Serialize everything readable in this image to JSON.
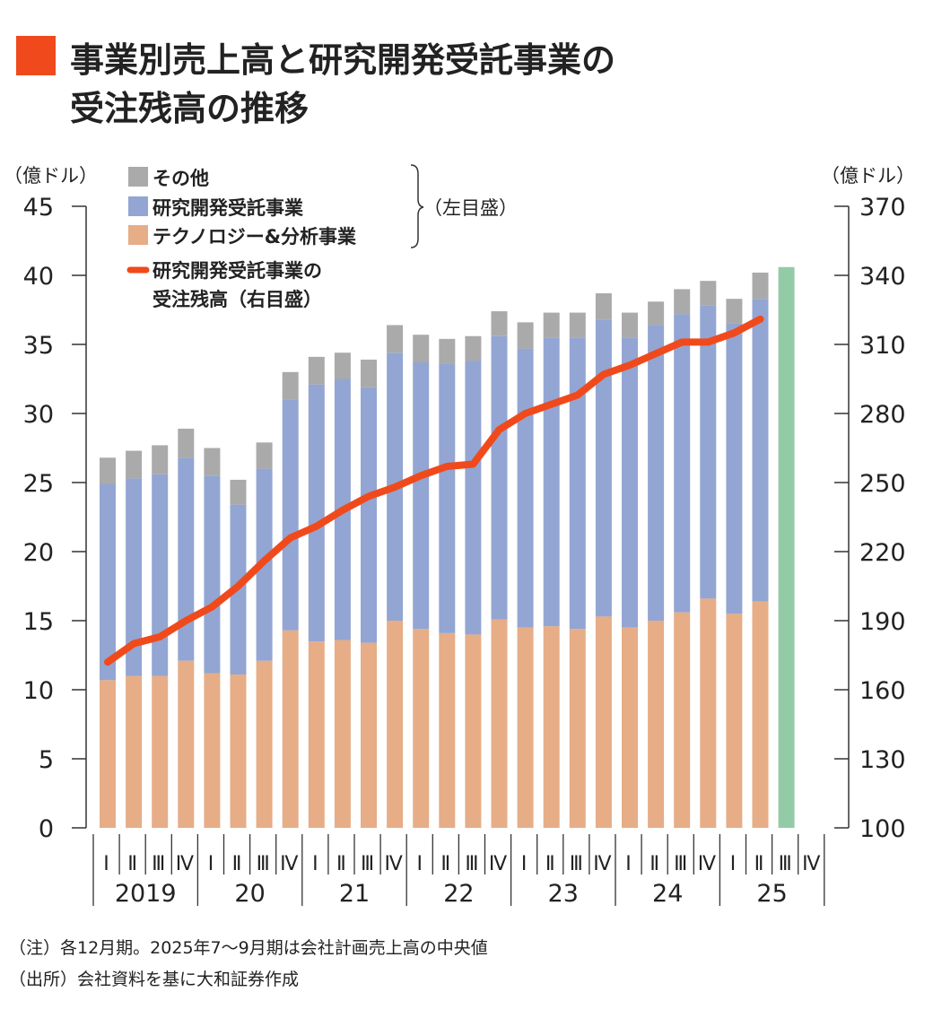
{
  "title": {
    "line1": "事業別売上高と研究開発受託事業の",
    "line2": "受注残高の推移",
    "marker_color": "#f04a1c"
  },
  "chart_data": {
    "type": "bar+line",
    "stacked": true,
    "left_axis": {
      "unit": "（億ドル）",
      "range": [
        0,
        45
      ],
      "ticks": [
        "0",
        "5",
        "10",
        "15",
        "20",
        "25",
        "30",
        "35",
        "40",
        "45"
      ]
    },
    "right_axis": {
      "unit": "（億ドル）",
      "range": [
        100,
        370
      ],
      "ticks": [
        "100",
        "130",
        "160",
        "190",
        "220",
        "250",
        "280",
        "310",
        "340",
        "370"
      ]
    },
    "quarters": [
      "Ⅰ",
      "Ⅱ",
      "Ⅲ",
      "Ⅳ"
    ],
    "years": [
      "2019",
      "20",
      "21",
      "22",
      "23",
      "24",
      "25"
    ],
    "series": [
      {
        "name": "テクノロジー&分析事業",
        "color": "#e6ad87",
        "axis": "left",
        "values": [
          10.7,
          11.0,
          11.0,
          12.1,
          11.2,
          11.1,
          12.1,
          14.3,
          13.5,
          13.6,
          13.4,
          15.0,
          14.4,
          14.1,
          14.0,
          15.1,
          14.5,
          14.6,
          14.4,
          15.3,
          14.5,
          15.0,
          15.6,
          16.6,
          15.5,
          16.4
        ]
      },
      {
        "name": "研究開発受託事業",
        "color": "#93a5d2",
        "axis": "left",
        "values": [
          14.2,
          14.3,
          14.6,
          14.7,
          14.3,
          12.3,
          13.9,
          16.7,
          18.6,
          18.9,
          18.5,
          19.4,
          19.3,
          19.5,
          19.8,
          20.5,
          20.2,
          20.9,
          21.1,
          21.5,
          21.0,
          21.4,
          21.6,
          21.2,
          21.0,
          21.9
        ]
      },
      {
        "name": "その他",
        "color": "#aaaaaa",
        "axis": "left",
        "values": [
          1.9,
          2.0,
          2.1,
          2.1,
          2.0,
          1.8,
          1.9,
          2.0,
          2.0,
          1.9,
          2.0,
          2.0,
          2.0,
          1.8,
          1.8,
          1.8,
          1.9,
          1.8,
          1.8,
          1.9,
          1.8,
          1.7,
          1.8,
          1.8,
          1.8,
          1.9
        ]
      },
      {
        "name": "研究開発受託事業の受注残高（右目盛）",
        "color": "#f04a1c",
        "axis": "right",
        "type": "line",
        "values": [
          172,
          180,
          183,
          190,
          196,
          205,
          216,
          226,
          231,
          238,
          244,
          248,
          253,
          257,
          258,
          273,
          280,
          284,
          288,
          297,
          301,
          306,
          311,
          311,
          315,
          321
        ]
      }
    ],
    "forecast": {
      "quarter": "2025 Ⅲ",
      "value": 40.6,
      "color": "#93cba6",
      "axis": "left"
    },
    "legend_bracket_label": "（左目盛）",
    "legend_line_label": [
      "研究開発受託事業の",
      "受注残高（右目盛）"
    ]
  },
  "notes": [
    "（注）各12月期。2025年7～9月期は会社計画売上高の中央値",
    "（出所）会社資料を基に大和証券作成"
  ]
}
